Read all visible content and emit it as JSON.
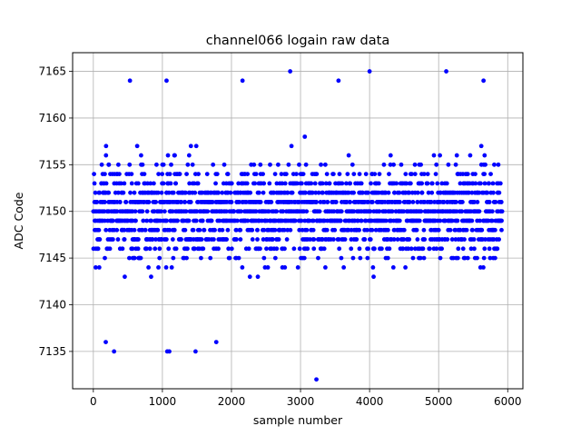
{
  "chart_data": {
    "type": "scatter",
    "title": "channel066 logain raw data",
    "xlabel": "sample number",
    "ylabel": "ADC Code",
    "xlim": [
      -300,
      6220
    ],
    "ylim": [
      7131,
      7167
    ],
    "xticks": [
      0,
      1000,
      2000,
      3000,
      4000,
      5000,
      6000
    ],
    "yticks": [
      7135,
      7140,
      7145,
      7150,
      7155,
      7160,
      7165
    ],
    "xtick_labels": [
      "0",
      "1000",
      "2000",
      "3000",
      "4000",
      "5000",
      "6000"
    ],
    "ytick_labels": [
      "7135",
      "7140",
      "7145",
      "7150",
      "7155",
      "7160",
      "7165"
    ],
    "grid": true,
    "marker": "dot",
    "series": [
      {
        "color": "#0000ff",
        "n_points": 5920,
        "x_range": [
          0,
          5920
        ],
        "value_levels": [
          7143,
          7144,
          7145,
          7146,
          7147,
          7148,
          7149,
          7150,
          7151,
          7152,
          7153,
          7154,
          7155,
          7156,
          7157
        ],
        "sparse_levels": [
          7137,
          7138,
          7139,
          7140,
          7141,
          7142,
          7158,
          7159,
          7160,
          7161,
          7162,
          7163
        ],
        "outliers": [
          {
            "x": 300,
            "y": 7135
          },
          {
            "x": 1070,
            "y": 7135
          },
          {
            "x": 1100,
            "y": 7135
          },
          {
            "x": 1480,
            "y": 7135
          },
          {
            "x": 1780,
            "y": 7136
          },
          {
            "x": 180,
            "y": 7136
          },
          {
            "x": 3230,
            "y": 7132
          },
          {
            "x": 530,
            "y": 7164
          },
          {
            "x": 1060,
            "y": 7164
          },
          {
            "x": 2160,
            "y": 7164
          },
          {
            "x": 3550,
            "y": 7164
          },
          {
            "x": 5650,
            "y": 7164
          },
          {
            "x": 2850,
            "y": 7165
          },
          {
            "x": 4000,
            "y": 7165
          },
          {
            "x": 5110,
            "y": 7165
          }
        ]
      }
    ]
  }
}
